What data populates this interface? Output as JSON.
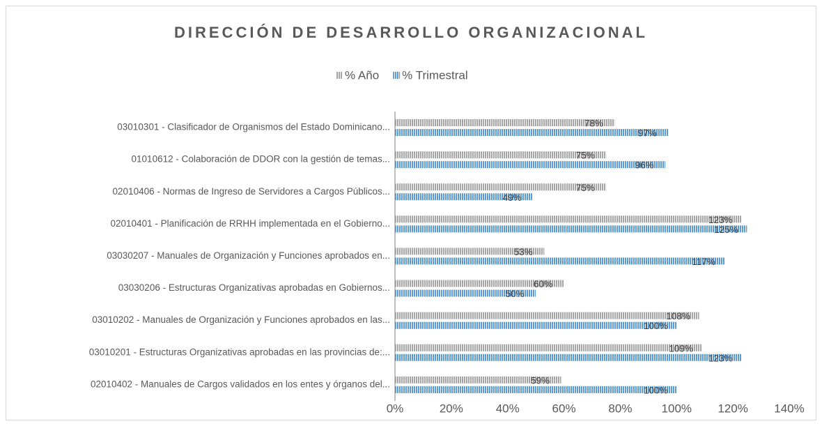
{
  "chart_data": {
    "type": "hbar",
    "title": "DIRECCIÓN DE DESARROLLO ORGANIZACIONAL",
    "categories": [
      "03010301 - Clasificador de Organismos del Estado Dominicano...",
      "01010612 - Colaboración de DDOR con la gestión de temas...",
      "02010406 - Normas de Ingreso de Servidores a Cargos Públicos...",
      "02010401 - Planificación de RRHH implementada en el Gobierno...",
      "03030207 - Manuales de Organización y Funciones aprobados en...",
      "03030206 - Estructuras Organizativas aprobadas en Gobiernos...",
      "03010202 - Manuales de Organización y Funciones aprobados en las...",
      "03010201 - Estructuras Organizativas aprobadas en las provincias de:...",
      "02010402 - Manuales de Cargos validados en los entes y órganos del..."
    ],
    "series": [
      {
        "name": "% Año",
        "color": "#a5a5a5",
        "values": [
          78,
          75,
          75,
          123,
          53,
          60,
          108,
          109,
          59
        ],
        "value_labels": [
          "78%",
          "75%",
          "75%",
          "123%",
          "53%",
          "60%",
          "108%",
          "109%",
          "59%"
        ]
      },
      {
        "name": "% Trimestral",
        "color": "#5b9bd5",
        "values": [
          97,
          96,
          49,
          125,
          117,
          50,
          100,
          123,
          100
        ],
        "value_labels": [
          "97%",
          "96%",
          "49%",
          "125%",
          "117%",
          "50%",
          "100%",
          "123%",
          "100%"
        ]
      }
    ],
    "xlim": [
      0,
      140
    ],
    "xticks": [
      {
        "value": 0,
        "label": "0%"
      },
      {
        "value": 20,
        "label": "20%"
      },
      {
        "value": 40,
        "label": "40%"
      },
      {
        "value": 60,
        "label": "60%"
      },
      {
        "value": 80,
        "label": "80%"
      },
      {
        "value": 100,
        "label": "100%"
      },
      {
        "value": 120,
        "label": "120%"
      },
      {
        "value": 140,
        "label": "140%"
      }
    ],
    "legend": "top"
  }
}
